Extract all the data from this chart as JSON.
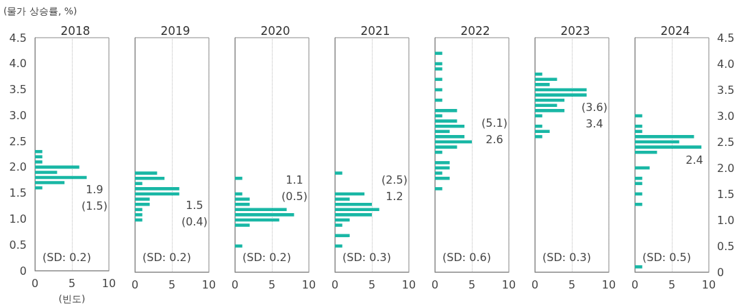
{
  "chart_data": [
    {
      "type": "bar",
      "orientation": "horizontal",
      "title": "2018",
      "ylabel": "(물가 상승률, %)",
      "xlabel": "(빈도)",
      "color": "#19b7a5",
      "x": [
        2.3,
        2.2,
        2.1,
        2.0,
        1.9,
        1.8,
        1.7,
        1.6
      ],
      "values": [
        1,
        1,
        1,
        6,
        3,
        7,
        4,
        1
      ],
      "xlim": [
        0,
        10
      ],
      "xticks": [
        0,
        5,
        10
      ],
      "ylim": [
        0,
        4.5
      ],
      "yticks": [
        0,
        0.5,
        {
          "value": 1,
          "label": "1.0"
        },
        1.5,
        {
          "value": 2,
          "label": "2.0"
        },
        2.5,
        {
          "value": 3,
          "label": "3.0"
        },
        3.5,
        {
          "value": 4,
          "label": "4.0"
        },
        4.5
      ],
      "grid": "x",
      "annotations": [
        "1.9",
        "(1.5)",
        "(SD: 0.2)"
      ]
    },
    {
      "type": "bar",
      "orientation": "horizontal",
      "title": "2019",
      "color": "#19b7a5",
      "tick_labels": "x",
      "x": [
        1.9,
        1.8,
        1.7,
        1.6,
        1.5,
        1.4,
        1.3,
        1.2,
        1.1,
        1.0
      ],
      "values": [
        3,
        4,
        1,
        6,
        6,
        2,
        2,
        1,
        1,
        1
      ],
      "xlim": [
        0,
        10
      ],
      "xticks": [
        0,
        5,
        10
      ],
      "ylim": [
        0,
        4.5
      ],
      "yticks": [
        0,
        0.5,
        1,
        1.5,
        2,
        2.5,
        3,
        3.5,
        4,
        4.5
      ],
      "grid": "x",
      "annotations": [
        "1.5",
        "(0.4)",
        "(SD: 0.2)"
      ]
    },
    {
      "type": "bar",
      "orientation": "horizontal",
      "title": "2020",
      "color": "#19b7a5",
      "tick_labels": "x",
      "x": [
        1.8,
        1.5,
        1.4,
        1.3,
        1.2,
        1.1,
        1.0,
        0.9,
        0.5
      ],
      "values": [
        1,
        1,
        2,
        2,
        7,
        8,
        6,
        2,
        1
      ],
      "xlim": [
        0,
        10
      ],
      "xticks": [
        0,
        5,
        10
      ],
      "ylim": [
        0,
        4.5
      ],
      "yticks": [
        0,
        0.5,
        1,
        1.5,
        2,
        2.5,
        3,
        3.5,
        4,
        4.5
      ],
      "grid": "x",
      "annotations": [
        "1.1",
        "(0.5)",
        "(SD: 0.2)"
      ]
    },
    {
      "type": "bar",
      "orientation": "horizontal",
      "title": "2021",
      "color": "#19b7a5",
      "tick_labels": "x",
      "x": [
        1.9,
        1.5,
        1.4,
        1.3,
        1.2,
        1.1,
        1.0,
        0.9,
        0.7,
        0.5
      ],
      "values": [
        1,
        4,
        2,
        5,
        6,
        5,
        2,
        1,
        2,
        1
      ],
      "xlim": [
        0,
        10
      ],
      "xticks": [
        0,
        5,
        10
      ],
      "ylim": [
        0,
        4.5
      ],
      "yticks": [
        0,
        0.5,
        1,
        1.5,
        2,
        2.5,
        3,
        3.5,
        4,
        4.5
      ],
      "grid": "x",
      "annotations": [
        "(2.5)",
        "1.2",
        "(SD: 0.3)"
      ]
    },
    {
      "type": "bar",
      "orientation": "horizontal",
      "title": "2022",
      "color": "#19b7a5",
      "tick_labels": "x",
      "x": [
        4.2,
        4.0,
        3.9,
        3.7,
        3.5,
        3.3,
        3.1,
        3.0,
        2.9,
        2.8,
        2.7,
        2.6,
        2.5,
        2.4,
        2.3,
        2.1,
        2.0,
        1.9,
        1.8,
        1.6
      ],
      "values": [
        1,
        1,
        1,
        1,
        1,
        1,
        3,
        1,
        3,
        4,
        2,
        4,
        5,
        3,
        1,
        2,
        2,
        1,
        2,
        1
      ],
      "xlim": [
        0,
        10
      ],
      "xticks": [
        0,
        5,
        10
      ],
      "ylim": [
        0,
        4.5
      ],
      "yticks": [
        0,
        0.5,
        1,
        1.5,
        2,
        2.5,
        3,
        3.5,
        4,
        4.5
      ],
      "grid": "x",
      "annotations": [
        "(5.1)",
        "2.6",
        "(SD: 0.6)"
      ]
    },
    {
      "type": "bar",
      "orientation": "horizontal",
      "title": "2023",
      "color": "#19b7a5",
      "tick_labels": "x",
      "x": [
        3.8,
        3.7,
        3.6,
        3.5,
        3.4,
        3.3,
        3.2,
        3.1,
        3.0,
        2.8,
        2.7,
        2.6
      ],
      "values": [
        1,
        3,
        2,
        7,
        7,
        4,
        3,
        4,
        1,
        1,
        2,
        1
      ],
      "xlim": [
        0,
        10
      ],
      "xticks": [
        0,
        5,
        10
      ],
      "ylim": [
        0,
        4.5
      ],
      "yticks": [
        0,
        0.5,
        1,
        1.5,
        2,
        2.5,
        3,
        3.5,
        4,
        4.5
      ],
      "grid": "x",
      "annotations": [
        "(3.6)",
        "3.4",
        "(SD: 0.3)"
      ]
    },
    {
      "type": "bar",
      "orientation": "horizontal",
      "title": "2024",
      "color": "#19b7a5",
      "x": [
        3.0,
        2.8,
        2.7,
        2.6,
        2.5,
        2.4,
        2.3,
        2.0,
        1.8,
        1.7,
        1.5,
        1.3,
        0.1
      ],
      "values": [
        1,
        1,
        1,
        8,
        6,
        9,
        3,
        2,
        1,
        1,
        1,
        1,
        1
      ],
      "xlim": [
        0,
        10
      ],
      "xticks": [
        0,
        5,
        10
      ],
      "ylim": [
        0,
        4.5
      ],
      "yticks": [
        0,
        0.5,
        {
          "value": 1,
          "label": "1.0"
        },
        1.5,
        {
          "value": 2,
          "label": "2.0"
        },
        2.5,
        {
          "value": 3,
          "label": "3.0"
        },
        3.5,
        {
          "value": 4,
          "label": "4.0"
        },
        4.5
      ],
      "grid": "x",
      "annotations": [
        "2.4",
        "(SD: 0.5)"
      ]
    }
  ]
}
